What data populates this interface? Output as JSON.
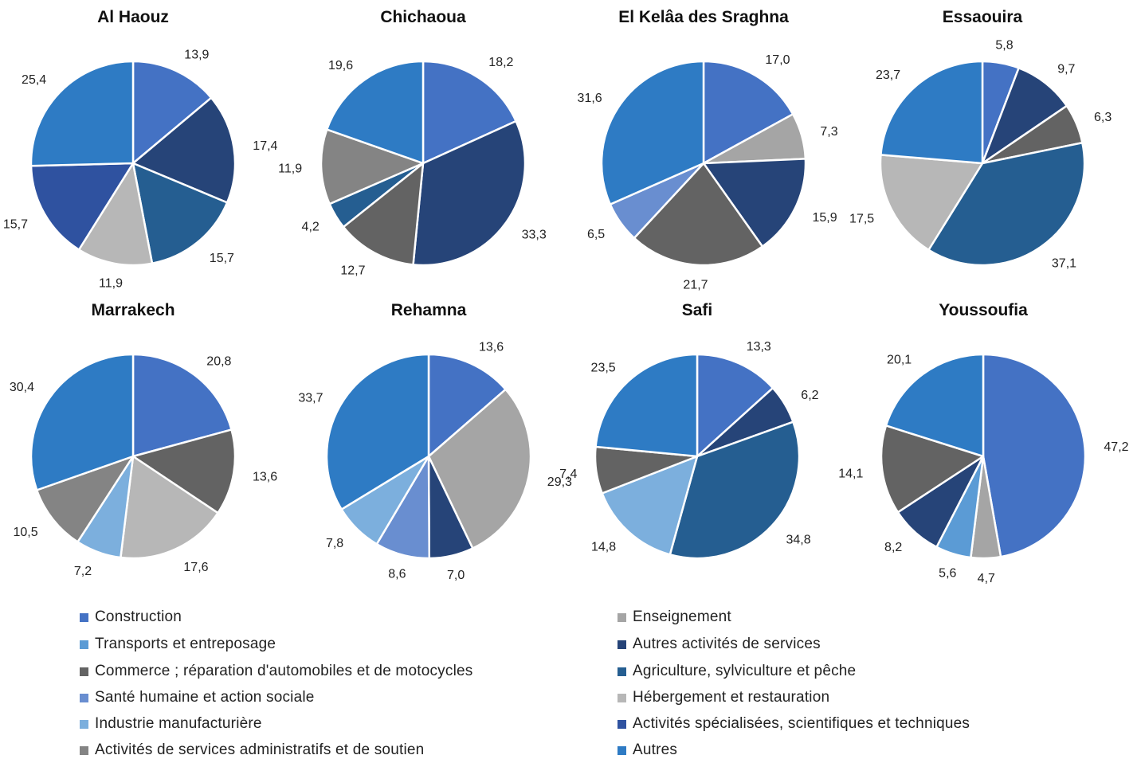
{
  "chart_data": [
    {
      "type": "pie",
      "title": "Al Haouz",
      "categories": [
        "Construction",
        "Autres activités de services",
        "Agriculture, sylviculture et pêche",
        "Hébergement et restauration",
        "Activités spécialisées, scientifiques et techniques",
        "Autres"
      ],
      "values": [
        13.9,
        17.4,
        15.7,
        11.9,
        15.7,
        25.4
      ],
      "labels": [
        "13,9",
        "17,4",
        "15,7",
        "11,9",
        "15,7",
        "25,4"
      ]
    },
    {
      "type": "pie",
      "title": "Chichaoua",
      "categories": [
        "Construction",
        "Autres activités de services",
        "Commerce ; réparation d'automobiles et de motocycles",
        "Agriculture, sylviculture et pêche",
        "Activités de services administratifs et de soutien",
        "Autres"
      ],
      "values": [
        18.2,
        33.3,
        12.7,
        4.2,
        11.9,
        19.6
      ],
      "labels": [
        "18,2",
        "33,3",
        "12,7",
        "4,2",
        "11,9",
        "19,6"
      ]
    },
    {
      "type": "pie",
      "title": "El Kelâa des Sraghna",
      "categories": [
        "Construction",
        "Enseignement",
        "Autres activités de services",
        "Commerce ; réparation d'automobiles et de motocycles",
        "Santé humaine et action sociale",
        "Autres"
      ],
      "values": [
        17.0,
        7.3,
        15.9,
        21.7,
        6.5,
        31.6
      ],
      "labels": [
        "17,0",
        "7,3",
        "15,9",
        "21,7",
        "6,5",
        "31,6"
      ]
    },
    {
      "type": "pie",
      "title": "Essaouira",
      "categories": [
        "Construction",
        "Autres activités de services",
        "Commerce ; réparation d'automobiles et de motocycles",
        "Agriculture, sylviculture et pêche",
        "Hébergement et restauration",
        "Autres"
      ],
      "values": [
        5.8,
        9.7,
        6.3,
        37.1,
        17.5,
        23.7
      ],
      "labels": [
        "5,8",
        "9,7",
        "6,3",
        "37,1",
        "17,5",
        "23,7"
      ]
    },
    {
      "type": "pie",
      "title": "Marrakech",
      "categories": [
        "Construction",
        "Commerce ; réparation d'automobiles et de motocycles",
        "Hébergement et restauration",
        "Industrie manufacturière",
        "Activités de services administratifs et de soutien",
        "Autres"
      ],
      "values": [
        20.8,
        13.6,
        17.6,
        7.2,
        10.5,
        30.4
      ],
      "labels": [
        "20,8",
        "13,6",
        "17,6",
        "7,2",
        "10,5",
        "30,4"
      ]
    },
    {
      "type": "pie",
      "title": "Rehamna",
      "categories": [
        "Construction",
        "Enseignement",
        "Autres activités de services",
        "Santé humaine et action sociale",
        "Industrie manufacturière",
        "Autres"
      ],
      "values": [
        13.6,
        29.3,
        7.0,
        8.6,
        7.8,
        33.7
      ],
      "labels": [
        "13,6",
        "29,3",
        "7,0",
        "8,6",
        "7,8",
        "33,7"
      ]
    },
    {
      "type": "pie",
      "title": "Safi",
      "categories": [
        "Construction",
        "Autres activités de services",
        "Agriculture, sylviculture et pêche",
        "Industrie manufacturière",
        "Commerce ; réparation d'automobiles et de motocycles",
        "Autres"
      ],
      "values": [
        13.3,
        6.2,
        34.8,
        14.8,
        7.4,
        23.5
      ],
      "labels": [
        "13,3",
        "6,2",
        "34,8",
        "14,8",
        "7,4",
        "23,5"
      ]
    },
    {
      "type": "pie",
      "title": "Youssoufia",
      "categories": [
        "Construction",
        "Enseignement",
        "Transports et entreposage",
        "Autres activités de services",
        "Commerce ; réparation d'automobiles et de motocycles",
        "Autres"
      ],
      "values": [
        47.2,
        4.7,
        5.6,
        8.2,
        14.1,
        20.1
      ],
      "labels": [
        "47,2",
        "4,7",
        "5,6",
        "8,2",
        "14,1",
        "20,1"
      ]
    }
  ],
  "legend": [
    {
      "label": "Construction",
      "color": "#4472C4"
    },
    {
      "label": "Enseignement",
      "color": "#A5A5A5"
    },
    {
      "label": "Transports et entreposage",
      "color": "#5B9BD5"
    },
    {
      "label": "Autres activités de services",
      "color": "#264478"
    },
    {
      "label": "Commerce ; réparation d'automobiles et de motocycles",
      "color": "#636363"
    },
    {
      "label": "Agriculture, sylviculture et pêche",
      "color": "#255E91"
    },
    {
      "label": "Santé humaine et action sociale",
      "color": "#698ED0"
    },
    {
      "label": "Hébergement et restauration",
      "color": "#B7B7B7"
    },
    {
      "label": "Industrie manufacturière",
      "color": "#7CAFDD"
    },
    {
      "label": "Activités spécialisées, scientifiques et techniques",
      "color": "#2F52A0"
    },
    {
      "label": "Activités de services administratifs et de soutien",
      "color": "#848484"
    },
    {
      "label": "Autres",
      "color": "#2E7BC4"
    }
  ]
}
